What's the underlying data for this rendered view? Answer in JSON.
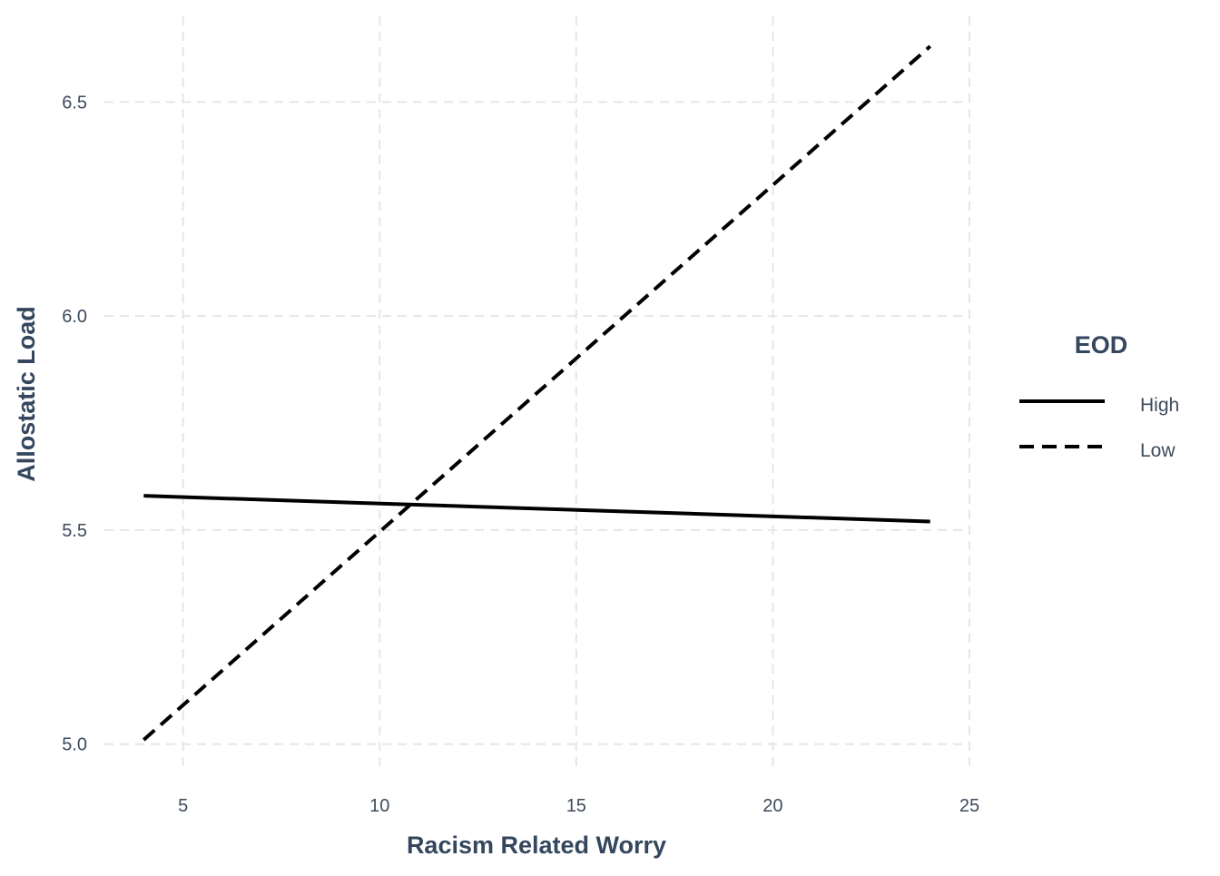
{
  "chart_data": {
    "type": "line",
    "title": "",
    "xlabel": "Racism Related Worry",
    "ylabel": "Allostatic Load",
    "xlim": [
      3,
      25
    ],
    "ylim": [
      4.94,
      6.7
    ],
    "x_ticks": [
      5,
      10,
      15,
      20,
      25
    ],
    "x_tick_labels": [
      "5",
      "10",
      "15",
      "20",
      "25"
    ],
    "y_ticks": [
      5.0,
      5.5,
      6.0,
      6.5
    ],
    "y_tick_labels": [
      "5.0",
      "5.5",
      "6.0",
      "6.5"
    ],
    "grid": true,
    "legend": {
      "title": "EOD",
      "position": "right"
    },
    "series": [
      {
        "name": "High",
        "line_style": "solid",
        "color": "#000000",
        "x": [
          4,
          24
        ],
        "y": [
          5.58,
          5.52
        ]
      },
      {
        "name": "Low",
        "line_style": "dashed",
        "color": "#000000",
        "x": [
          4,
          24
        ],
        "y": [
          5.01,
          6.63
        ]
      }
    ]
  }
}
